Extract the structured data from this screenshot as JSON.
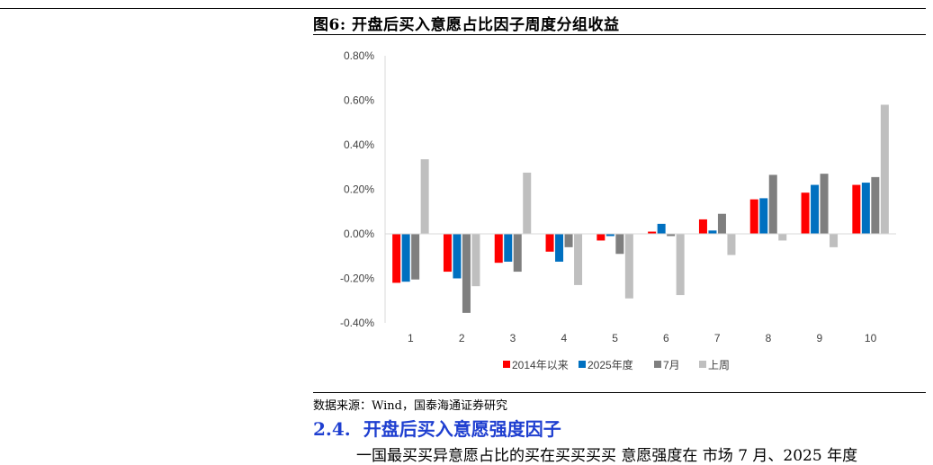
{
  "figure_title": "图6:  开盘后买入意愿占比因子周度分组收益",
  "source_text": "数据来源：Wind，国泰海通证券研究",
  "section": {
    "number": "2.4.",
    "title": "开盘后买入意愿强度因子"
  },
  "cutoff_text": "一国最买买异意愿占比的买在买买买买 意愿强度在 市场 7 月、2025 年度",
  "colors": {
    "s1": "#ff0000",
    "s2": "#0070c0",
    "s3": "#7f7f7f",
    "s4": "#bfbfbf",
    "heading": "#1f3fd0"
  },
  "chart_data": {
    "type": "bar",
    "title": "",
    "xlabel": "",
    "ylabel": "",
    "ylim": [
      -0.4,
      0.8
    ],
    "yticks": [
      "0.80%",
      "0.60%",
      "0.40%",
      "0.20%",
      "0.00%",
      "-0.20%",
      "-0.40%"
    ],
    "ytick_values": [
      0.8,
      0.6,
      0.4,
      0.2,
      0.0,
      -0.2,
      -0.4
    ],
    "categories": [
      "1",
      "2",
      "3",
      "4",
      "5",
      "6",
      "7",
      "8",
      "9",
      "10"
    ],
    "legend_position": "bottom",
    "grid": false,
    "series": [
      {
        "name": "2014年以来",
        "values": [
          -0.22,
          -0.17,
          -0.13,
          -0.08,
          -0.03,
          0.01,
          0.065,
          0.155,
          0.185,
          0.22
        ]
      },
      {
        "name": "2025年度",
        "values": [
          -0.215,
          -0.2,
          -0.125,
          -0.125,
          -0.01,
          0.045,
          0.015,
          0.16,
          0.22,
          0.23
        ]
      },
      {
        "name": "7月",
        "values": [
          -0.205,
          -0.355,
          -0.17,
          -0.06,
          -0.09,
          -0.01,
          0.09,
          0.265,
          0.27,
          0.255
        ]
      },
      {
        "name": "上周",
        "values": [
          0.335,
          -0.235,
          0.275,
          -0.23,
          -0.29,
          -0.275,
          -0.095,
          -0.03,
          -0.06,
          0.58
        ]
      }
    ]
  }
}
